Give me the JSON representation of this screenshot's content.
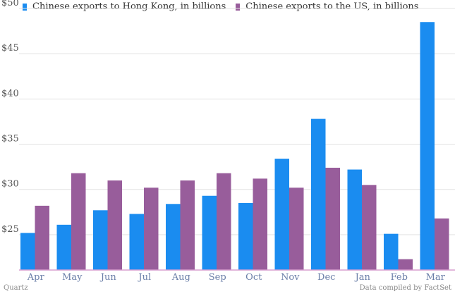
{
  "chart_data": {
    "type": "bar",
    "categories": [
      "Apr",
      "May",
      "Jun",
      "Jul",
      "Aug",
      "Sep",
      "Oct",
      "Nov",
      "Dec",
      "Jan",
      "Feb",
      "Mar"
    ],
    "series": [
      {
        "name": "Chinese exports to Hong Kong, in billions",
        "color": "#1a8cf0",
        "values": [
          25.2,
          26.1,
          27.7,
          27.3,
          28.4,
          29.3,
          28.5,
          33.4,
          37.8,
          32.2,
          25.1,
          48.5
        ]
      },
      {
        "name": "Chinese exports to the US, in billions",
        "color": "#985d9b",
        "values": [
          28.2,
          31.8,
          31.0,
          30.2,
          31.0,
          31.8,
          31.2,
          30.2,
          32.4,
          30.5,
          22.3,
          26.8
        ]
      }
    ],
    "yticks": [
      "$25",
      "$30",
      "$35",
      "$40",
      "$45",
      "$50"
    ],
    "ytick_values": [
      25,
      30,
      35,
      40,
      45,
      50
    ],
    "ylim": [
      21.1,
      50
    ],
    "grid": true,
    "legend_position": "top-left"
  },
  "footer": {
    "source_left": "Quartz",
    "source_right": "Data compiled by FactSet"
  }
}
